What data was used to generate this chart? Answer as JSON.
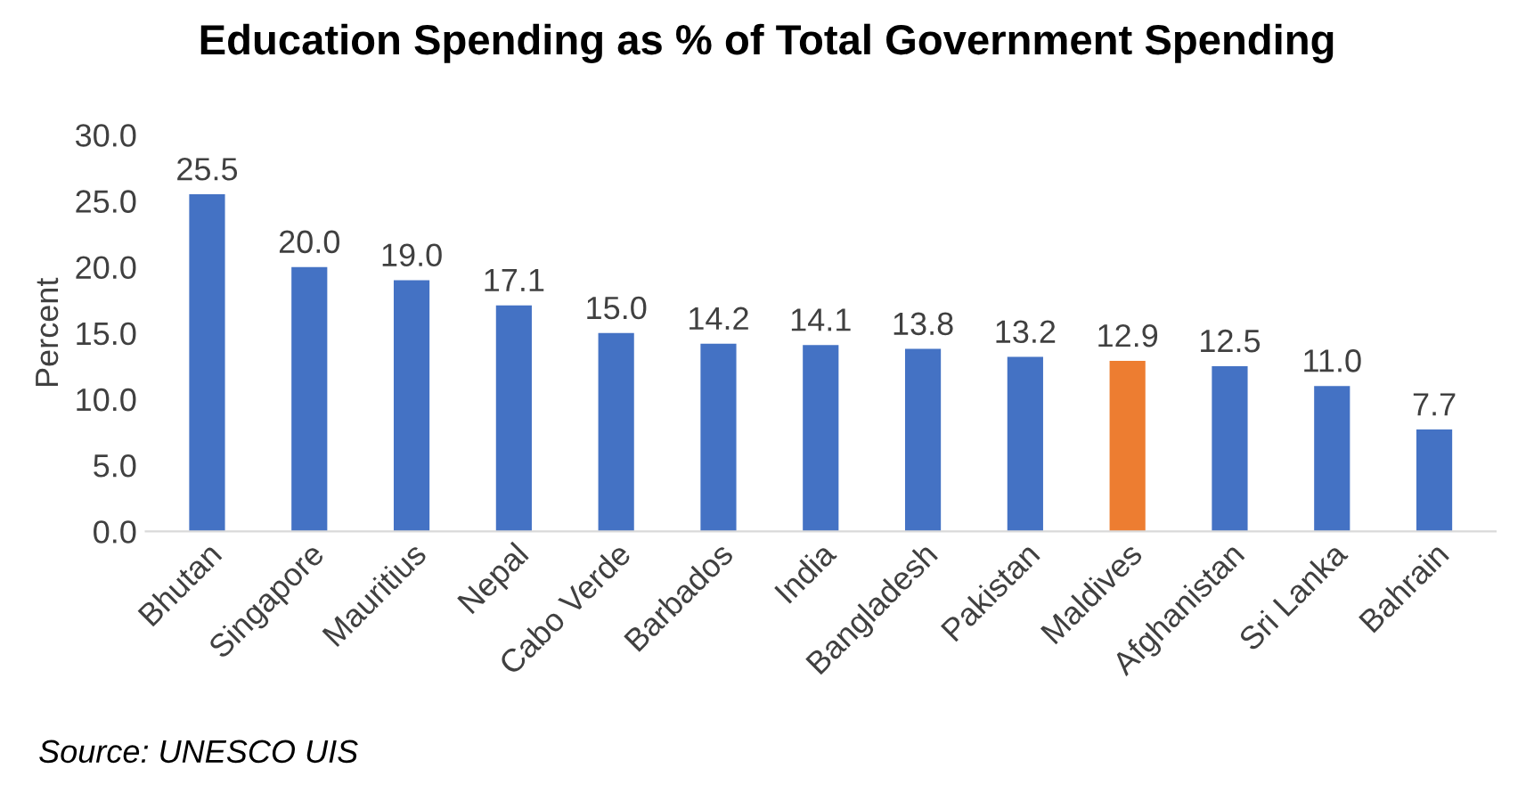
{
  "chart_data": {
    "type": "bar",
    "title": "Education Spending as % of Total Government Spending",
    "ylabel": "Percent",
    "categories": [
      "Bhutan",
      "Singapore",
      "Mauritius",
      "Nepal",
      "Cabo Verde",
      "Barbados",
      "India",
      "Bangladesh",
      "Pakistan",
      "Maldives",
      "Afghanistan",
      "Sri Lanka",
      "Bahrain"
    ],
    "values": [
      25.5,
      20.0,
      19.0,
      17.1,
      15.0,
      14.2,
      14.1,
      13.8,
      13.2,
      12.9,
      12.5,
      11.0,
      7.7
    ],
    "value_labels": [
      "25.5",
      "20.0",
      "19.0",
      "17.1",
      "15.0",
      "14.2",
      "14.1",
      "13.8",
      "13.2",
      "12.9",
      "12.5",
      "11.0",
      "7.7"
    ],
    "colors": [
      "#4472c4",
      "#4472c4",
      "#4472c4",
      "#4472c4",
      "#4472c4",
      "#4472c4",
      "#4472c4",
      "#4472c4",
      "#4472c4",
      "#ed7d31",
      "#4472c4",
      "#4472c4",
      "#4472c4"
    ],
    "ylim": [
      0,
      30
    ],
    "yticks": [
      {
        "value": 0,
        "label": "0.0"
      },
      {
        "value": 5,
        "label": "5.0"
      },
      {
        "value": 10,
        "label": "10.0"
      },
      {
        "value": 15,
        "label": "15.0"
      },
      {
        "value": 20,
        "label": "20.0"
      },
      {
        "value": 25,
        "label": "25.0"
      },
      {
        "value": 30,
        "label": "30.0"
      }
    ],
    "grid": false,
    "annotations": [
      "Source: UNESCO UIS"
    ]
  }
}
